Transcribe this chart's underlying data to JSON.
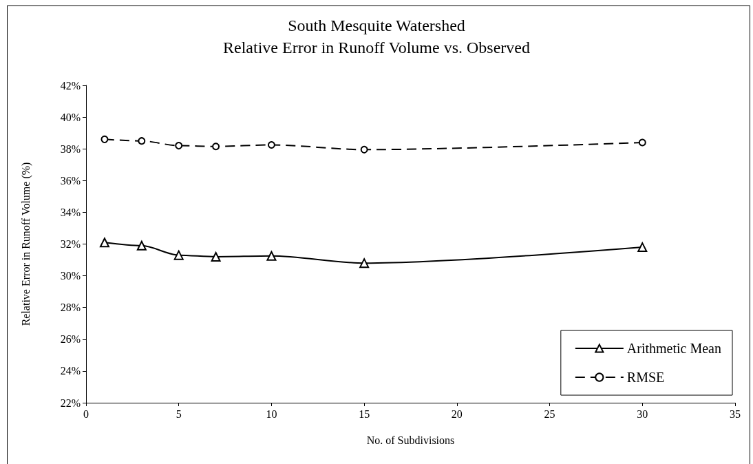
{
  "chart_data": {
    "type": "line",
    "title": "South Mesquite Watershed",
    "subtitle": "Relative Error in Runoff Volume vs. Observed",
    "xlabel": "No. of Subdivisions",
    "ylabel": "Relative Error in Runoff Volume (%)",
    "x": [
      1,
      3,
      5,
      7,
      10,
      15,
      30
    ],
    "series": [
      {
        "name": "Arithmetic Mean",
        "color": "#000000",
        "marker": "triangle",
        "line_style": "solid",
        "values": [
          32.1,
          31.9,
          31.3,
          31.2,
          31.25,
          30.8,
          31.8
        ]
      },
      {
        "name": "RMSE",
        "color": "#000000",
        "marker": "circle",
        "line_style": "dashed",
        "values": [
          38.6,
          38.5,
          38.2,
          38.15,
          38.25,
          37.95,
          38.4
        ]
      }
    ],
    "xlim": [
      0,
      35
    ],
    "xticks": [
      0,
      5,
      10,
      15,
      20,
      25,
      30,
      35
    ],
    "ylim": [
      22,
      42
    ],
    "yticks": [
      {
        "value": 22,
        "label": "22%"
      },
      {
        "value": 24,
        "label": "24%"
      },
      {
        "value": 26,
        "label": "26%"
      },
      {
        "value": 28,
        "label": "28%"
      },
      {
        "value": 30,
        "label": "30%"
      },
      {
        "value": 32,
        "label": "32%"
      },
      {
        "value": 34,
        "label": "34%"
      },
      {
        "value": 36,
        "label": "36%"
      },
      {
        "value": 38,
        "label": "38%"
      },
      {
        "value": 40,
        "label": "40%"
      },
      {
        "value": 42,
        "label": "42%"
      }
    ],
    "grid": false,
    "legend": "bottom right"
  }
}
